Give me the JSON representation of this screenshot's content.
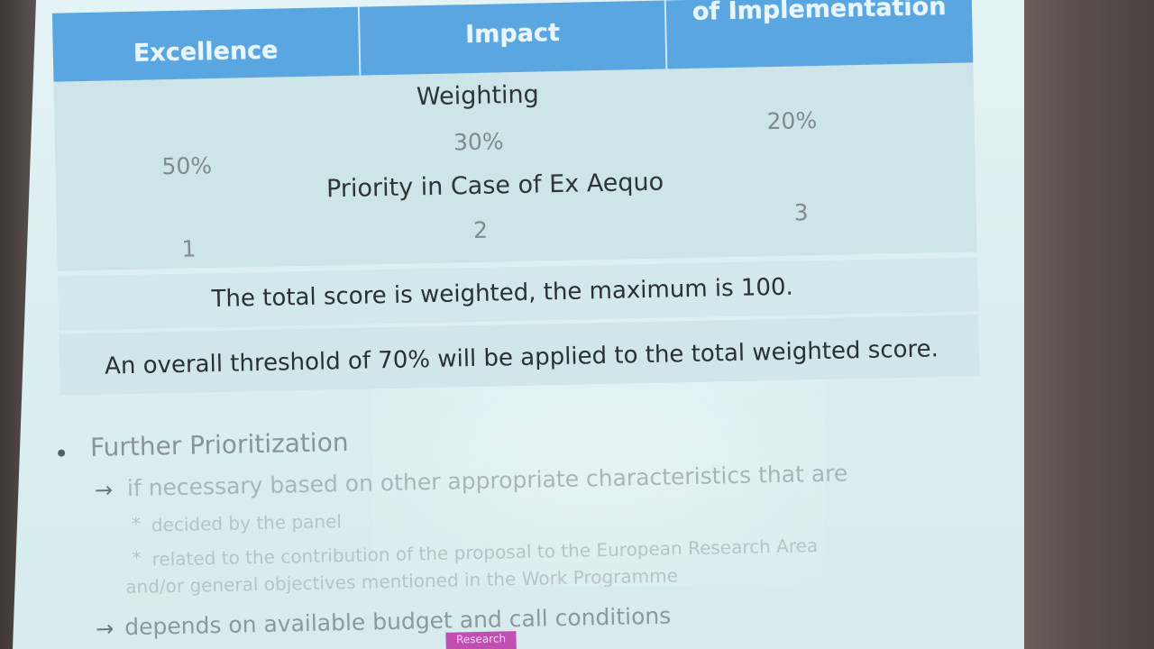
{
  "table": {
    "headers": [
      "Excellence",
      "Impact",
      "of Implementation"
    ],
    "rows": [
      {
        "label": "Weighting",
        "values": [
          "50%",
          "30%",
          "20%"
        ]
      },
      {
        "label": "Priority in Case of Ex Aequo",
        "values": [
          "1",
          "2",
          "3"
        ]
      }
    ]
  },
  "notes": {
    "total": "The total score is weighted, the maximum is 100.",
    "threshold": "An overall threshold of 70% will be applied to the total weighted score."
  },
  "bullets": {
    "title": "Further Prioritization",
    "arrow_glyph": "→",
    "asterisk": "*",
    "item1": "if necessary based on other appropriate characteristics that are",
    "sub1": "decided by the panel",
    "sub2_line1": "related to the contribution of the proposal to the European Research Area",
    "sub2_line2": "and/or general objectives mentioned in the Work Programme",
    "item2": "depends on available budget and call conditions"
  },
  "footer": {
    "badge": "Research"
  },
  "colors": {
    "header_blue": "#5aa6e0",
    "badge_magenta": "#c04fb3"
  }
}
